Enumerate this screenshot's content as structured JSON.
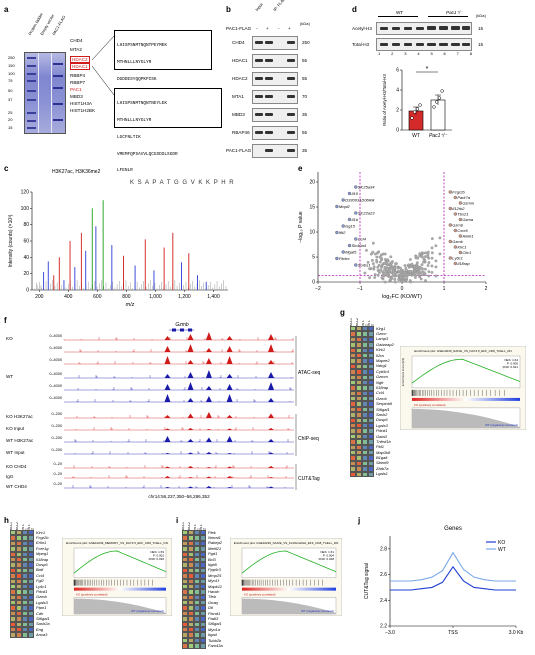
{
  "panel_labels": {
    "a": "a",
    "b": "b",
    "c": "c",
    "d": "d",
    "e": "e",
    "f": "f",
    "g": "g",
    "h": "h",
    "i": "i",
    "j": "j"
  },
  "panel_a": {
    "lane_headers": [
      "Protein ladder",
      "Empty vector",
      "PAC1-FLAG"
    ],
    "markers": [
      "250",
      "150",
      "100",
      "75",
      "50",
      "37",
      "25",
      "20",
      "15"
    ],
    "band_labels": [
      "CHD4",
      "MTA2",
      "HDAC2",
      "HDAC1",
      "RBBP4",
      "RBBP7",
      "PAC1",
      "MBD3",
      "HIST1H3A",
      "HIST1H2BK"
    ],
    "seq_box1": [
      "LHISPSNMTNQNTPEYMEK",
      "MTHNLLLNYGLYR",
      "DGDDESYQQPKPISK",
      "VMTVSFHK",
      "LFENLR"
    ],
    "seq_box2": [
      "LHISPSNMTNQNTNEYLEK",
      "MTHNLLLNYGLYR",
      "LGCFNLTIK",
      "VMEMFQPSAVVLQCGSDSLSGDR",
      "LFENLR"
    ]
  },
  "panel_b": {
    "col_headers": [
      "Input",
      "IP: FLAG"
    ],
    "pac1_row": "PAC1-FLAG",
    "signs": [
      "-",
      "+",
      "-",
      "+"
    ],
    "kda_label": "(kDa)",
    "rows": [
      {
        "name": "CHD4",
        "kda": "250"
      },
      {
        "name": "HDAC1",
        "kda": "55"
      },
      {
        "name": "HDAC2",
        "kda": "55"
      },
      {
        "name": "MTA1",
        "kda": "70"
      },
      {
        "name": "MBD3",
        "kda": "35"
      },
      {
        "name": "RBAP46",
        "kda": "55"
      },
      {
        "name": "PAC1-FLAG",
        "kda": "35"
      }
    ]
  },
  "panel_c": {
    "title": "H3K27ac, H3K36me2",
    "peptide": "K S A P A T G G V K K P H R",
    "ylabel": "Intensity (counts) (×10³)",
    "xlabel": "m/z",
    "y_ticks": [
      "0",
      "20",
      "40",
      "60",
      "80",
      "100",
      "120"
    ],
    "x_ticks": [
      "200",
      "400",
      "600",
      "800",
      "1,000",
      "1,200",
      "1,400"
    ],
    "chart_data": {
      "type": "bar",
      "xlim": [
        150,
        1500
      ],
      "ylim": [
        0,
        120
      ],
      "peaks": [
        {
          "x": 230,
          "y": 22,
          "c": "#2a3bd6"
        },
        {
          "x": 262,
          "y": 35,
          "c": "#2a3bd6"
        },
        {
          "x": 300,
          "y": 18,
          "c": "#d11a1a"
        },
        {
          "x": 338,
          "y": 40,
          "c": "#d11a1a"
        },
        {
          "x": 370,
          "y": 12,
          "c": "#2a3bd6"
        },
        {
          "x": 412,
          "y": 60,
          "c": "#d11a1a"
        },
        {
          "x": 445,
          "y": 28,
          "c": "#2a3bd6"
        },
        {
          "x": 490,
          "y": 70,
          "c": "#d11a1a"
        },
        {
          "x": 520,
          "y": 48,
          "c": "#2a3bd6"
        },
        {
          "x": 565,
          "y": 100,
          "c": "#1b9e1b"
        },
        {
          "x": 590,
          "y": 78,
          "c": "#2a3bd6"
        },
        {
          "x": 640,
          "y": 110,
          "c": "#1b9e1b"
        },
        {
          "x": 700,
          "y": 55,
          "c": "#2a3bd6"
        },
        {
          "x": 780,
          "y": 42,
          "c": "#d11a1a"
        },
        {
          "x": 860,
          "y": 30,
          "c": "#2a3bd6"
        },
        {
          "x": 930,
          "y": 62,
          "c": "#d11a1a"
        },
        {
          "x": 990,
          "y": 24,
          "c": "#2a3bd6"
        },
        {
          "x": 1060,
          "y": 52,
          "c": "#d11a1a"
        },
        {
          "x": 1120,
          "y": 70,
          "c": "#d11a1a"
        },
        {
          "x": 1180,
          "y": 34,
          "c": "#2a3bd6"
        },
        {
          "x": 1230,
          "y": 45,
          "c": "#d11a1a"
        },
        {
          "x": 1290,
          "y": 18,
          "c": "#2a3bd6"
        },
        {
          "x": 1350,
          "y": 10,
          "c": "#2a3bd6"
        }
      ]
    }
  },
  "panel_d": {
    "groups": [
      "WT",
      "Pac1⁺/⁻"
    ],
    "kda_label": "(kDa)",
    "rows": [
      {
        "name": "Acetyl-H3",
        "kda": "15"
      },
      {
        "name": "Total-H3",
        "kda": "15"
      }
    ],
    "lane_numbers": [
      "1",
      "2",
      "3",
      "4",
      "5",
      "6",
      "7",
      "8"
    ],
    "ylabel": "Ratio of Acetyl-H3/Total-H3",
    "y_ticks": [
      "0",
      "2",
      "4",
      "6"
    ],
    "x_labels": [
      "WT",
      "Pac1⁺/⁻"
    ],
    "sig": "*",
    "chart_data": {
      "type": "bar",
      "categories": [
        "WT",
        "Pac1+/-"
      ],
      "values": [
        1.9,
        3.0
      ],
      "errors": [
        0.4,
        0.5
      ],
      "points": [
        [
          1.2,
          1.8,
          2.1,
          2.5
        ],
        [
          2.3,
          2.8,
          3.2,
          3.9
        ]
      ],
      "ylim": [
        0,
        6
      ]
    }
  },
  "panel_e": {
    "ylabel": "−log₁₀ P value",
    "xlabel": "log₂FC (KO/WT)",
    "x_ticks": [
      "−2",
      "−1",
      "0",
      "1",
      "2"
    ],
    "y_ticks": [
      "0",
      "5",
      "10",
      "15",
      "20"
    ],
    "left_genes": [
      "Slc25a34",
      "Il10",
      "D330031D06Rik",
      "Mcpt2",
      "Slc22a23",
      "Il1b",
      "Isg15",
      "Ifit2",
      "Ccl4",
      "Slc40a4",
      "Mgat5",
      "Pkdcc",
      "Sorbs1"
    ],
    "right_genes": [
      "Fcgr2b",
      "Park7a",
      "Gzmm",
      "Il12rb2",
      "Tbx21",
      "Gzma",
      "Gzmb",
      "Cxcr6",
      "Ankk1",
      "Gzmk",
      "Klrc1",
      "Clic1",
      "Ly6c1",
      "Il18rap"
    ],
    "chart_data": {
      "type": "scatter",
      "xlim": [
        -2,
        2
      ],
      "ylim": [
        0,
        22
      ],
      "thresholds_x": [
        -1,
        1
      ]
    }
  },
  "panel_f": {
    "gene": "Gzmb",
    "range_label": "0–4000",
    "small_range_label": "0–200",
    "cut_range_label": "0–20",
    "track_names": [
      "KO",
      "WT",
      "KO H3K27ac",
      "KO Input",
      "WT H3K27ac",
      "WT Input",
      "KO CHD4",
      "IgG",
      "WT CHD4"
    ],
    "section_labels": [
      "ATAC-seq",
      "ChIP-seq",
      "CUT&Tag"
    ],
    "coord": "chr14:56,237,350–56,286,352"
  },
  "panel_g": {
    "col_labels": [
      "KO-1",
      "KO-2",
      "WT-1",
      "WT-2"
    ],
    "genes": [
      "Klrg1",
      "Gzmc",
      "Lamp3",
      "Gabarap2",
      "Klrk1",
      "Il2ra",
      "Mapre2",
      "Ndrg1",
      "Cyb5r4",
      "Gzmm",
      "Ngfr",
      "Il18rap",
      "Ccl4",
      "Gzmb",
      "Serpinb9",
      "St6gal1",
      "Sash2",
      "Dusp6",
      "Lgals3",
      "Pdcd1",
      "Gata3",
      "Tnfrsf1b",
      "Pld1",
      "Map3k8",
      "B1galt",
      "Slamf9",
      "Zbtb7a",
      "Lgals1"
    ],
    "gsea_title": "Enrichment plot: GSE10239_NAIVE_VS_DAY4.5_EFF_CD8_TCELL_DN",
    "es_label": "Enrichment score (ES)",
    "stats": [
      "NES: 1.64",
      "P: 0.000",
      "FDR: 0.021"
    ],
    "pos": "KO (positively correlated)",
    "neg": "WT (negatively correlated)"
  },
  "panel_h": {
    "col_labels": [
      "KO-1",
      "KO-2",
      "WT-1",
      "WT-2"
    ],
    "genes": [
      "Klrc1",
      "Fcgr2b",
      "Erlin1",
      "Fcer1g",
      "Mpeg1",
      "Il18rap",
      "Dusp6",
      "Batf",
      "Ccl4",
      "Fgl2",
      "Ly6c1",
      "Pdcd1",
      "Gzmb",
      "Lgals3",
      "Ptpn1",
      "Cdh",
      "St6gal1",
      "Sash2a",
      "Eng",
      "Anxa3"
    ],
    "gsea_title": "Enrichment plot: GSE10239_MEMORY_VS_DAY4.5_EFF_CD8_TCELL_DN",
    "stats": [
      "NES: 1.59",
      "P: 0.002",
      "FDR: 0.036"
    ],
    "pos": "KO (positively correlated)",
    "neg": "WT (negatively correlated)"
  },
  "panel_i": {
    "col_labels": [
      "KO-1",
      "KO-2",
      "WT-1",
      "WT-2"
    ],
    "genes": [
      "Plek",
      "Nmral1",
      "Rabep2",
      "Mettl21",
      "Pgd1",
      "Bcl3",
      "Itgb5",
      "Ppp6r3",
      "Mmp25",
      "Myo1f",
      "Mapk11",
      "Havdc",
      "Tfeb",
      "Gnaq",
      "Dtl",
      "Plxnd1",
      "Padi3",
      "St6gal1",
      "Myo1a",
      "Itga4",
      "Tubb2b",
      "Fam43a"
    ],
    "gsea_title": "Enrichment plot: GSE10239_NAIVE_VS_KLRG1HIGH_EFF_CD8_TCELL_DN",
    "stats": [
      "NES: 1.51",
      "P: 0.004",
      "FDR: 0.048"
    ],
    "pos": "KO (positively correlated)",
    "neg": "WT (negatively correlated)"
  },
  "panel_j": {
    "title": "Genes",
    "legend": [
      "KO",
      "WT"
    ],
    "ylabel": "CUT&Tag signal",
    "y_ticks": [
      "2.2",
      "2.4",
      "2.6",
      "2.8"
    ],
    "x_ticks": [
      "−3.0",
      "TSS",
      "3.0 Kb"
    ],
    "colors": {
      "KO": "#1f3fd1",
      "WT": "#7aa9e6"
    },
    "chart_data": {
      "type": "line",
      "x": [
        -3.0,
        -2.5,
        -2.0,
        -1.5,
        -1.0,
        -0.5,
        0.0,
        0.5,
        1.0,
        1.5,
        2.0,
        2.5,
        3.0
      ],
      "series": [
        {
          "name": "KO",
          "values": [
            2.48,
            2.48,
            2.48,
            2.49,
            2.5,
            2.54,
            2.66,
            2.55,
            2.5,
            2.49,
            2.48,
            2.48,
            2.48
          ]
        },
        {
          "name": "WT",
          "values": [
            2.55,
            2.55,
            2.55,
            2.56,
            2.58,
            2.63,
            2.77,
            2.64,
            2.58,
            2.56,
            2.55,
            2.55,
            2.55
          ]
        }
      ],
      "ylim": [
        2.2,
        2.9
      ]
    }
  }
}
